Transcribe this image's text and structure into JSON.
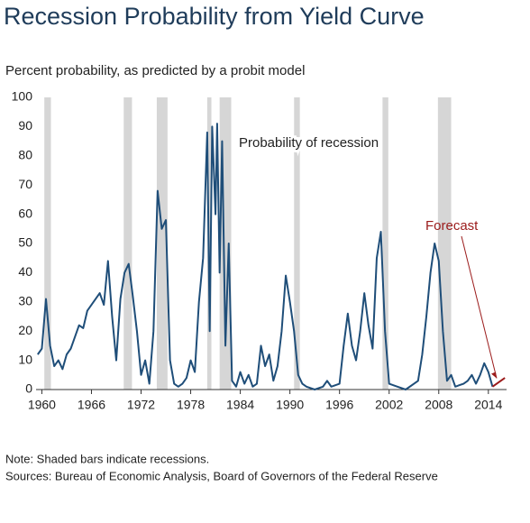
{
  "chart_data": {
    "type": "line",
    "title": "Recession Probability from Yield Curve",
    "subtitle": "Percent probability, as predicted by a probit model",
    "notes": [
      "Note: Shaded bars indicate recessions.",
      "Sources: Bureau of Economic Analysis, Board of Governors of the Federal Reserve"
    ],
    "xlim": [
      1959.3,
      2016.2
    ],
    "ylim": [
      0,
      100
    ],
    "xticks": [
      1960,
      1966,
      1972,
      1978,
      1984,
      1990,
      1996,
      2002,
      2008,
      2014
    ],
    "yticks": [
      0,
      10,
      20,
      30,
      40,
      50,
      60,
      70,
      80,
      90,
      100
    ],
    "recession_color": "#d6d6d6",
    "recessions": [
      [
        1960.3,
        1961.1
      ],
      [
        1969.9,
        1970.9
      ],
      [
        1973.9,
        1975.2
      ],
      [
        1980.0,
        1980.5
      ],
      [
        1981.5,
        1982.9
      ],
      [
        1990.5,
        1991.2
      ],
      [
        2001.2,
        2001.9
      ],
      [
        2007.9,
        2009.5
      ]
    ],
    "series": [
      {
        "name": "Probability of recession",
        "color": "#1f4e79",
        "x": [
          1959.5,
          1960,
          1960.5,
          1961,
          1961.5,
          1962,
          1962.5,
          1963,
          1963.5,
          1964,
          1964.5,
          1965,
          1965.5,
          1966,
          1966.5,
          1967,
          1967.5,
          1968,
          1968.5,
          1969,
          1969.5,
          1970,
          1970.5,
          1971,
          1971.5,
          1972,
          1972.5,
          1973,
          1973.5,
          1974,
          1974.5,
          1975,
          1975.5,
          1976,
          1976.5,
          1977,
          1977.5,
          1978,
          1978.5,
          1979,
          1979.5,
          1980,
          1980.3,
          1980.6,
          1981,
          1981.2,
          1981.5,
          1981.8,
          1982.2,
          1982.6,
          1983,
          1983.5,
          1984,
          1984.5,
          1985,
          1985.5,
          1986,
          1986.5,
          1987,
          1987.5,
          1988,
          1988.5,
          1989,
          1989.5,
          1990,
          1990.5,
          1991,
          1991.5,
          1992,
          1993,
          1994,
          1994.5,
          1995,
          1996,
          1996.5,
          1997,
          1997.5,
          1998,
          1998.5,
          1999,
          1999.5,
          2000,
          2000.5,
          2001,
          2001.5,
          2002,
          2003,
          2004,
          2005,
          2005.5,
          2006,
          2006.5,
          2007,
          2007.5,
          2008,
          2008.5,
          2009,
          2009.5,
          2010,
          2011,
          2011.5,
          2012,
          2012.5,
          2013,
          2013.5,
          2014,
          2014.5
        ],
        "values": [
          12,
          14,
          31,
          15,
          8,
          10,
          7,
          12,
          14,
          18,
          22,
          21,
          27,
          29,
          31,
          33,
          29,
          44,
          25,
          10,
          31,
          40,
          43,
          32,
          20,
          5,
          10,
          2,
          20,
          68,
          55,
          58,
          10,
          2,
          1,
          2,
          4,
          10,
          6,
          30,
          45,
          88,
          20,
          90,
          60,
          91,
          40,
          85,
          15,
          50,
          3,
          1,
          6,
          2,
          5,
          1,
          2,
          15,
          8,
          12,
          3,
          8,
          20,
          39,
          30,
          20,
          5,
          2,
          1,
          0,
          1,
          3,
          1,
          2,
          15,
          26,
          15,
          10,
          20,
          33,
          22,
          14,
          45,
          54,
          20,
          2,
          1,
          0,
          2,
          3,
          12,
          25,
          40,
          50,
          44,
          20,
          3,
          5,
          1,
          2,
          3,
          5,
          2,
          5,
          9,
          6,
          1
        ]
      },
      {
        "name": "Forecast",
        "color": "#9b1b1b",
        "x": [
          2014.5,
          2015,
          2015.5,
          2016
        ],
        "values": [
          1,
          2,
          3,
          4
        ]
      }
    ]
  }
}
